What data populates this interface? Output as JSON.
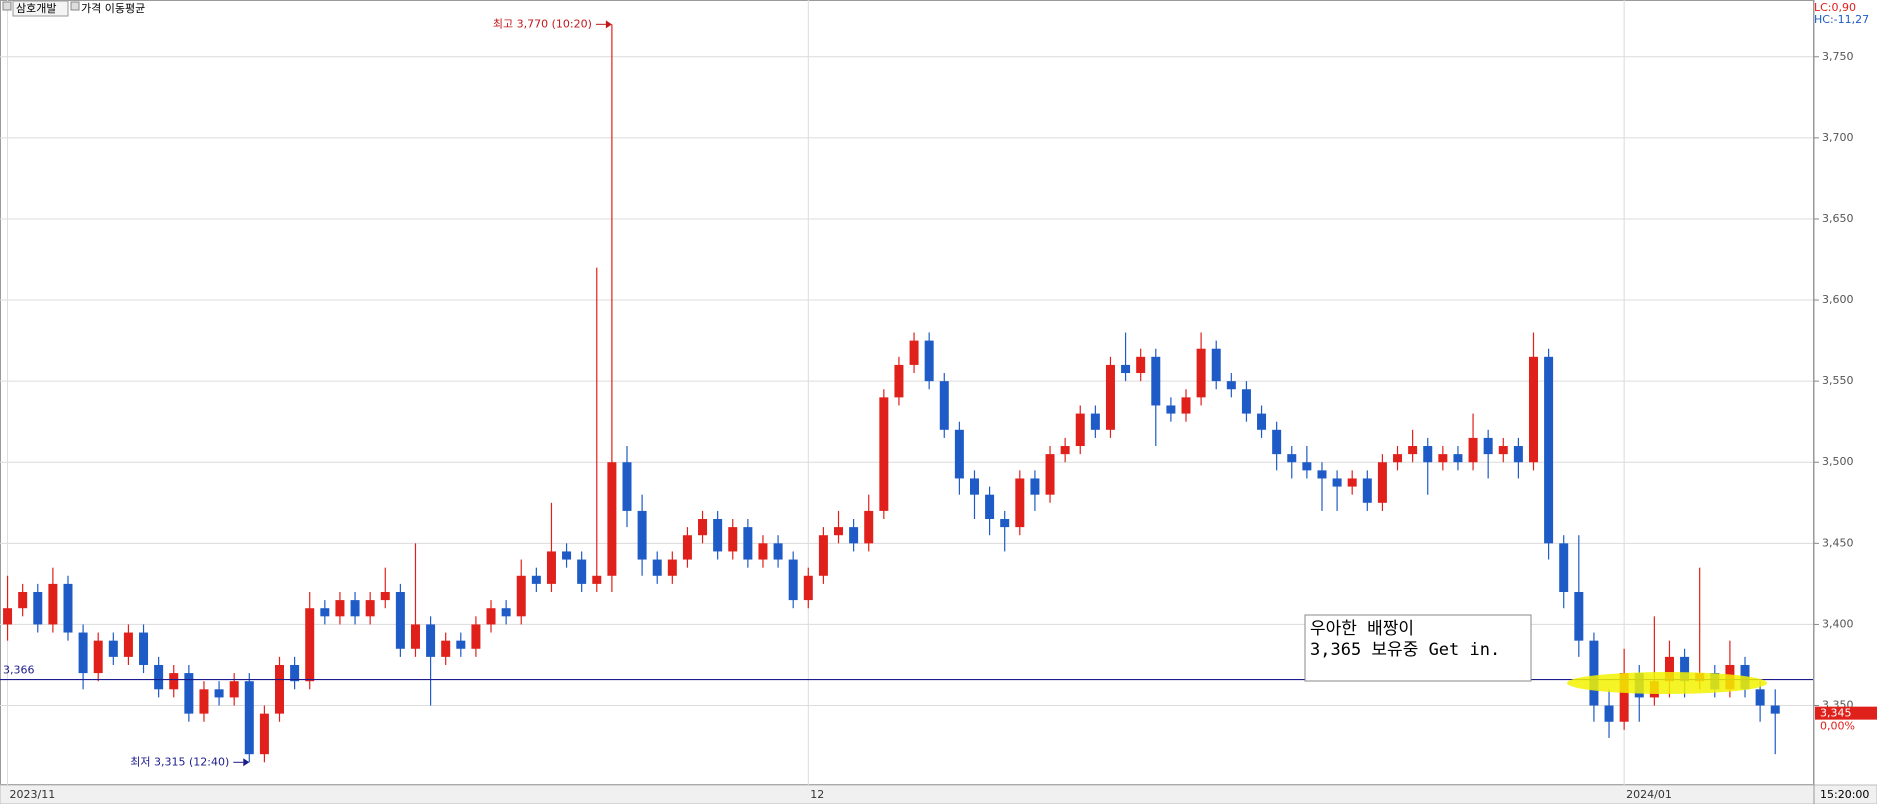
{
  "chart_data": {
    "type": "candlestick",
    "symbol": "삼호개발",
    "indicator": "가격 이동평균",
    "lc_label": "LC:0,90",
    "hc_label": "HC:-11,27",
    "time_label": "15:20:00",
    "change_label": "0,00%",
    "high_label": "최고 3,770 (10:20)",
    "low_label": "최저 3,315 (12:40)",
    "note": [
      "우아한 배짱이",
      "3,365 보유중 Get in."
    ],
    "hline": {
      "value": 3366,
      "label": "3,366",
      "color": "#1c1c8c"
    },
    "last_price": {
      "value": 3345,
      "label": "3,345",
      "color": "#e0201b"
    },
    "up_color": "#e0201b",
    "down_color": "#1e5bc6",
    "grid": true,
    "ylim": [
      3301,
      3785
    ],
    "yticks": [
      {
        "value": 3350,
        "label": "3,350"
      },
      {
        "value": 3400,
        "label": "3,400"
      },
      {
        "value": 3450,
        "label": "3,450"
      },
      {
        "value": 3500,
        "label": "3,500"
      },
      {
        "value": 3550,
        "label": "3,550"
      },
      {
        "value": 3600,
        "label": "3,600"
      },
      {
        "value": 3650,
        "label": "3,650"
      },
      {
        "value": 3700,
        "label": "3,700"
      },
      {
        "value": 3750,
        "label": "3,750"
      }
    ],
    "categories": [
      "2023/11",
      null,
      null,
      null,
      null,
      null,
      null,
      null,
      null,
      null,
      null,
      null,
      null,
      null,
      null,
      null,
      null,
      null,
      null,
      null,
      null,
      null,
      null,
      null,
      null,
      null,
      null,
      null,
      null,
      null,
      null,
      null,
      null,
      null,
      null,
      null,
      null,
      null,
      null,
      null,
      null,
      null,
      null,
      null,
      null,
      null,
      null,
      null,
      null,
      null,
      null,
      null,
      null,
      "12",
      null,
      null,
      null,
      null,
      null,
      null,
      null,
      null,
      null,
      null,
      null,
      null,
      null,
      null,
      null,
      null,
      null,
      null,
      null,
      null,
      null,
      null,
      null,
      null,
      null,
      null,
      null,
      null,
      null,
      null,
      null,
      null,
      null,
      null,
      null,
      null,
      null,
      null,
      null,
      null,
      null,
      null,
      null,
      null,
      null,
      null,
      null,
      null,
      null,
      null,
      null,
      null,
      null,
      "2024/01",
      null,
      null,
      null,
      null,
      null,
      null,
      null,
      null,
      null,
      null
    ],
    "ohlc": [
      [
        3400,
        3430,
        3390,
        3410
      ],
      [
        3410,
        3425,
        3405,
        3420
      ],
      [
        3420,
        3425,
        3395,
        3400
      ],
      [
        3400,
        3435,
        3395,
        3425
      ],
      [
        3425,
        3430,
        3390,
        3395
      ],
      [
        3395,
        3400,
        3360,
        3370
      ],
      [
        3370,
        3395,
        3365,
        3390
      ],
      [
        3390,
        3395,
        3375,
        3380
      ],
      [
        3380,
        3400,
        3375,
        3395
      ],
      [
        3395,
        3400,
        3370,
        3375
      ],
      [
        3375,
        3380,
        3355,
        3360
      ],
      [
        3360,
        3375,
        3355,
        3370
      ],
      [
        3370,
        3375,
        3340,
        3345
      ],
      [
        3345,
        3365,
        3340,
        3360
      ],
      [
        3360,
        3365,
        3350,
        3355
      ],
      [
        3355,
        3370,
        3350,
        3365
      ],
      [
        3365,
        3370,
        3315,
        3320
      ],
      [
        3320,
        3350,
        3315,
        3345
      ],
      [
        3345,
        3380,
        3340,
        3375
      ],
      [
        3375,
        3380,
        3360,
        3365
      ],
      [
        3365,
        3420,
        3360,
        3410
      ],
      [
        3410,
        3415,
        3400,
        3405
      ],
      [
        3405,
        3420,
        3400,
        3415
      ],
      [
        3415,
        3420,
        3400,
        3405
      ],
      [
        3405,
        3420,
        3400,
        3415
      ],
      [
        3415,
        3435,
        3410,
        3420
      ],
      [
        3420,
        3425,
        3380,
        3385
      ],
      [
        3385,
        3450,
        3380,
        3400
      ],
      [
        3400,
        3405,
        3350,
        3380
      ],
      [
        3380,
        3395,
        3375,
        3390
      ],
      [
        3390,
        3395,
        3380,
        3385
      ],
      [
        3385,
        3405,
        3380,
        3400
      ],
      [
        3400,
        3415,
        3395,
        3410
      ],
      [
        3410,
        3415,
        3400,
        3405
      ],
      [
        3405,
        3440,
        3400,
        3430
      ],
      [
        3430,
        3435,
        3420,
        3425
      ],
      [
        3425,
        3475,
        3420,
        3445
      ],
      [
        3445,
        3450,
        3435,
        3440
      ],
      [
        3440,
        3445,
        3420,
        3425
      ],
      [
        3425,
        3620,
        3420,
        3430
      ],
      [
        3430,
        3770,
        3420,
        3500
      ],
      [
        3500,
        3510,
        3460,
        3470
      ],
      [
        3470,
        3480,
        3430,
        3440
      ],
      [
        3440,
        3445,
        3425,
        3430
      ],
      [
        3430,
        3445,
        3425,
        3440
      ],
      [
        3440,
        3460,
        3435,
        3455
      ],
      [
        3455,
        3470,
        3450,
        3465
      ],
      [
        3465,
        3470,
        3440,
        3445
      ],
      [
        3445,
        3465,
        3440,
        3460
      ],
      [
        3460,
        3465,
        3435,
        3440
      ],
      [
        3440,
        3455,
        3435,
        3450
      ],
      [
        3450,
        3455,
        3435,
        3440
      ],
      [
        3440,
        3445,
        3410,
        3415
      ],
      [
        3415,
        3435,
        3410,
        3430
      ],
      [
        3430,
        3460,
        3425,
        3455
      ],
      [
        3455,
        3470,
        3450,
        3460
      ],
      [
        3460,
        3465,
        3445,
        3450
      ],
      [
        3450,
        3480,
        3445,
        3470
      ],
      [
        3470,
        3545,
        3465,
        3540
      ],
      [
        3540,
        3565,
        3535,
        3560
      ],
      [
        3560,
        3580,
        3555,
        3575
      ],
      [
        3575,
        3580,
        3545,
        3550
      ],
      [
        3550,
        3555,
        3515,
        3520
      ],
      [
        3520,
        3525,
        3480,
        3490
      ],
      [
        3490,
        3495,
        3465,
        3480
      ],
      [
        3480,
        3485,
        3455,
        3465
      ],
      [
        3465,
        3470,
        3445,
        3460
      ],
      [
        3460,
        3495,
        3455,
        3490
      ],
      [
        3490,
        3495,
        3470,
        3480
      ],
      [
        3480,
        3510,
        3475,
        3505
      ],
      [
        3505,
        3515,
        3500,
        3510
      ],
      [
        3510,
        3535,
        3505,
        3530
      ],
      [
        3530,
        3535,
        3515,
        3520
      ],
      [
        3520,
        3565,
        3515,
        3560
      ],
      [
        3560,
        3580,
        3550,
        3555
      ],
      [
        3555,
        3570,
        3550,
        3565
      ],
      [
        3565,
        3570,
        3510,
        3535
      ],
      [
        3535,
        3540,
        3525,
        3530
      ],
      [
        3530,
        3545,
        3525,
        3540
      ],
      [
        3540,
        3580,
        3535,
        3570
      ],
      [
        3570,
        3575,
        3545,
        3550
      ],
      [
        3550,
        3555,
        3540,
        3545
      ],
      [
        3545,
        3550,
        3525,
        3530
      ],
      [
        3530,
        3535,
        3515,
        3520
      ],
      [
        3520,
        3525,
        3495,
        3505
      ],
      [
        3505,
        3510,
        3490,
        3500
      ],
      [
        3500,
        3510,
        3490,
        3495
      ],
      [
        3495,
        3500,
        3470,
        3490
      ],
      [
        3490,
        3495,
        3470,
        3485
      ],
      [
        3485,
        3495,
        3480,
        3490
      ],
      [
        3490,
        3495,
        3470,
        3475
      ],
      [
        3475,
        3505,
        3470,
        3500
      ],
      [
        3500,
        3510,
        3495,
        3505
      ],
      [
        3505,
        3520,
        3500,
        3510
      ],
      [
        3510,
        3515,
        3480,
        3500
      ],
      [
        3500,
        3510,
        3495,
        3505
      ],
      [
        3505,
        3510,
        3495,
        3500
      ],
      [
        3500,
        3530,
        3495,
        3515
      ],
      [
        3515,
        3520,
        3490,
        3505
      ],
      [
        3505,
        3515,
        3500,
        3510
      ],
      [
        3510,
        3515,
        3490,
        3500
      ],
      [
        3500,
        3580,
        3495,
        3565
      ],
      [
        3565,
        3570,
        3440,
        3450
      ],
      [
        3450,
        3455,
        3410,
        3420
      ],
      [
        3420,
        3455,
        3380,
        3390
      ],
      [
        3390,
        3395,
        3340,
        3350
      ],
      [
        3350,
        3360,
        3330,
        3340
      ],
      [
        3340,
        3385,
        3335,
        3370
      ],
      [
        3370,
        3375,
        3340,
        3355
      ],
      [
        3355,
        3405,
        3350,
        3365
      ],
      [
        3365,
        3390,
        3355,
        3380
      ],
      [
        3380,
        3385,
        3355,
        3365
      ],
      [
        3365,
        3435,
        3360,
        3370
      ],
      [
        3370,
        3375,
        3355,
        3360
      ],
      [
        3360,
        3390,
        3355,
        3375
      ],
      [
        3375,
        3380,
        3355,
        3360
      ],
      [
        3360,
        3365,
        3340,
        3350
      ],
      [
        3350,
        3360,
        3320,
        3345
      ]
    ]
  }
}
